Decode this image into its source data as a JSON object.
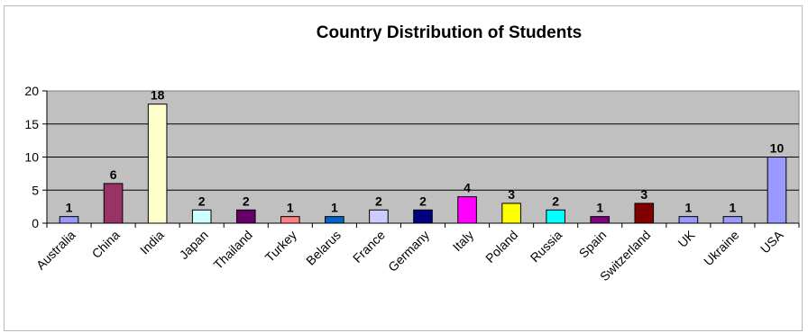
{
  "chart_data": {
    "type": "bar",
    "title": "Country Distribution of Students",
    "categories": [
      "Australia",
      "China",
      "India",
      "Japan",
      "Thailand",
      "Turkey",
      "Belarus",
      "France",
      "Germany",
      "Italy",
      "Poland",
      "Russia",
      "Spain",
      "Switzerland",
      "UK",
      "Ukraine",
      "USA"
    ],
    "values": [
      1,
      6,
      18,
      2,
      2,
      1,
      1,
      2,
      2,
      4,
      3,
      2,
      1,
      3,
      1,
      1,
      10
    ],
    "colors": [
      "#9999ff",
      "#993366",
      "#ffffcc",
      "#ccffff",
      "#660066",
      "#ff8080",
      "#0066cc",
      "#ccccff",
      "#000080",
      "#ff00ff",
      "#ffff00",
      "#00ffff",
      "#800080",
      "#800000",
      "#9999ff",
      "#9999ff",
      "#9999ff"
    ],
    "xlabel": "",
    "ylabel": "",
    "ylim": [
      0,
      20
    ],
    "yticks": [
      0,
      5,
      10,
      15,
      20
    ],
    "grid": true,
    "plot_background": "#c0c0c0",
    "data_labels": true,
    "legend": "none"
  }
}
